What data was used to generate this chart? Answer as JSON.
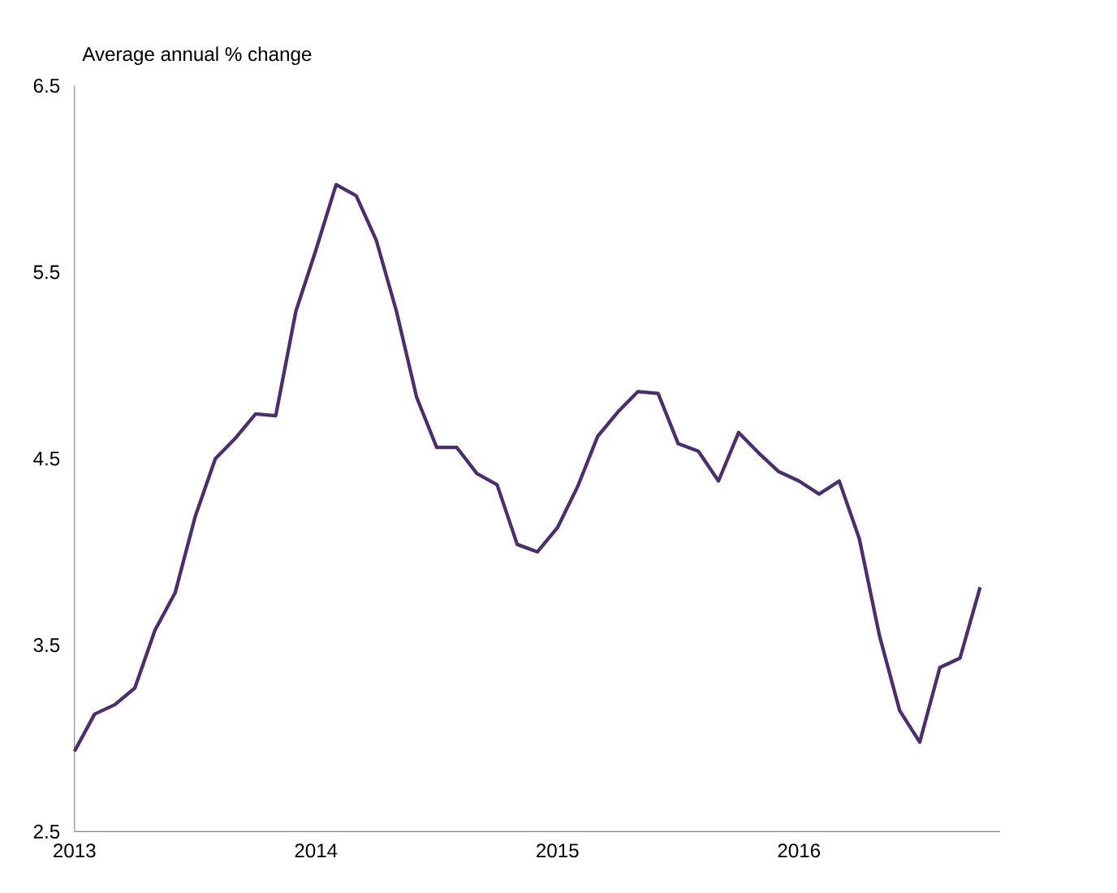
{
  "chart_data": {
    "type": "line",
    "ylabel": "Average annual % change",
    "x": [
      "2013-01",
      "2013-02",
      "2013-03",
      "2013-04",
      "2013-05",
      "2013-06",
      "2013-07",
      "2013-08",
      "2013-09",
      "2013-10",
      "2013-11",
      "2013-12",
      "2014-01",
      "2014-02",
      "2014-03",
      "2014-04",
      "2014-05",
      "2014-06",
      "2014-07",
      "2014-08",
      "2014-09",
      "2014-10",
      "2014-11",
      "2014-12",
      "2015-01",
      "2015-02",
      "2015-03",
      "2015-04",
      "2015-05",
      "2015-06",
      "2015-07",
      "2015-08",
      "2015-09",
      "2015-10",
      "2015-11",
      "2015-12",
      "2016-01",
      "2016-02",
      "2016-03",
      "2016-04",
      "2016-05",
      "2016-06",
      "2016-07",
      "2016-08",
      "2016-09",
      "2016-10"
    ],
    "series": [
      {
        "color": "#4b2e6e",
        "values": [
          2.93,
          3.13,
          3.18,
          3.27,
          3.58,
          3.78,
          4.19,
          4.5,
          4.61,
          4.74,
          4.73,
          5.29,
          5.62,
          5.97,
          5.91,
          5.67,
          5.29,
          4.83,
          4.56,
          4.56,
          4.42,
          4.36,
          4.04,
          4.0,
          4.13,
          4.35,
          4.62,
          4.75,
          4.86,
          4.85,
          4.58,
          4.54,
          4.38,
          4.64,
          4.53,
          4.43,
          4.38,
          4.31,
          4.38,
          4.07,
          3.55,
          3.15,
          2.98,
          3.38,
          3.43,
          3.81
        ]
      }
    ],
    "xlim": [
      "2013-01",
      "2016-11"
    ],
    "ylim": [
      2.5,
      6.5
    ],
    "xticks": [
      {
        "value": "2013-01",
        "label": "2013"
      },
      {
        "value": "2014-01",
        "label": "2014"
      },
      {
        "value": "2015-01",
        "label": "2015"
      },
      {
        "value": "2016-01",
        "label": "2016"
      }
    ],
    "yticks": [
      2.5,
      3.5,
      4.5,
      5.5,
      6.5
    ],
    "marker": "none",
    "line_style": "solid"
  }
}
